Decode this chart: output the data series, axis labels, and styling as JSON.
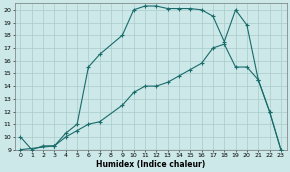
{
  "xlabel": "Humidex (Indice chaleur)",
  "ylabel": "",
  "bg_color": "#cce8e8",
  "grid_color": "#aacccc",
  "line_color": "#1a6b6b",
  "xlim": [
    -0.5,
    23.5
  ],
  "ylim": [
    9,
    20.5
  ],
  "xticks": [
    0,
    1,
    2,
    3,
    4,
    5,
    6,
    7,
    8,
    9,
    10,
    11,
    12,
    13,
    14,
    15,
    16,
    17,
    18,
    19,
    20,
    21,
    22,
    23
  ],
  "yticks": [
    9,
    10,
    11,
    12,
    13,
    14,
    15,
    16,
    17,
    18,
    19,
    20
  ],
  "line1_x": [
    0,
    1,
    2,
    3,
    4,
    5,
    6,
    7,
    9,
    10,
    11,
    12,
    13,
    14,
    15,
    16,
    17,
    18,
    19,
    20,
    21,
    22,
    23
  ],
  "line1_y": [
    10,
    9,
    9.3,
    9.3,
    10.3,
    11.0,
    15.5,
    16.5,
    18.0,
    20.0,
    20.3,
    20.3,
    20.1,
    20.1,
    20.1,
    20.0,
    19.5,
    17.5,
    20.0,
    18.8,
    14.5,
    12.0,
    9.0
  ],
  "line2_x": [
    0,
    3,
    4,
    5,
    6,
    7,
    9,
    10,
    11,
    12,
    13,
    14,
    15,
    16,
    17,
    18,
    19,
    20,
    21,
    22,
    23
  ],
  "line2_y": [
    9.0,
    9.3,
    10.0,
    10.5,
    11.0,
    11.2,
    12.5,
    13.5,
    14.0,
    14.0,
    14.3,
    14.8,
    15.3,
    15.8,
    17.0,
    17.3,
    15.5,
    15.5,
    14.5,
    12.0,
    9.0
  ],
  "line3_x": [
    0,
    3,
    8,
    18,
    23
  ],
  "line3_y": [
    9.0,
    9.0,
    9.0,
    9.0,
    9.0
  ]
}
